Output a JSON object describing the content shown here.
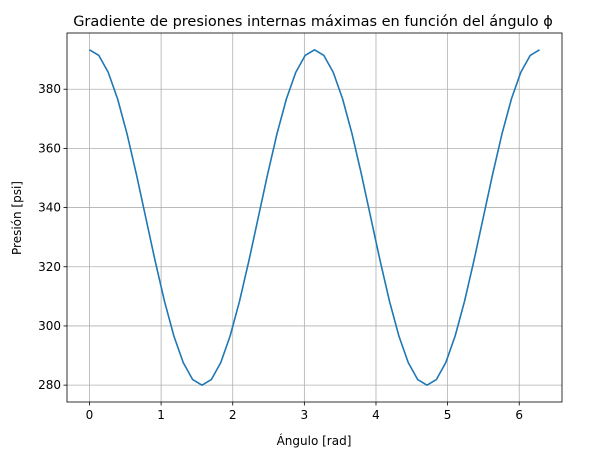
{
  "chart_data": {
    "type": "line",
    "title": "Gradiente de presiones internas máximas en función del ángulo ϕ",
    "xlabel": "Ángulo [rad]",
    "ylabel": "Presión [psi]",
    "xlim": [
      -0.314,
      6.597
    ],
    "ylim": [
      274.3,
      399.0
    ],
    "xticks": [
      0,
      1,
      2,
      3,
      4,
      5,
      6
    ],
    "xtick_labels": [
      "0",
      "1",
      "2",
      "3",
      "4",
      "5",
      "6"
    ],
    "yticks": [
      280,
      300,
      320,
      340,
      360,
      380
    ],
    "ytick_labels": [
      "280",
      "300",
      "320",
      "340",
      "360",
      "380"
    ],
    "grid": true,
    "series": [
      {
        "color": "#1f77b4",
        "x": [
          0,
          0.1309,
          0.2618,
          0.3927,
          0.5236,
          0.6545,
          0.7854,
          0.9163,
          1.0472,
          1.1781,
          1.309,
          1.4399,
          1.5708,
          1.7017,
          1.8326,
          1.9635,
          2.0944,
          2.2253,
          2.3562,
          2.4871,
          2.618,
          2.7489,
          2.8798,
          3.0107,
          3.1416,
          3.2725,
          3.4034,
          3.5343,
          3.6652,
          3.7961,
          3.927,
          4.0579,
          4.1888,
          4.3197,
          4.4506,
          4.5815,
          4.7124,
          4.8433,
          4.9742,
          5.1051,
          5.236,
          5.3669,
          5.4978,
          5.6287,
          5.7596,
          5.8905,
          6.0214,
          6.1523,
          6.2832
        ],
        "y": [
          393.3,
          391.4,
          385.7,
          376.7,
          364.97,
          351.3,
          336.65,
          322.0,
          308.33,
          296.6,
          287.6,
          281.9,
          280.0,
          281.9,
          287.6,
          296.6,
          308.33,
          322.0,
          336.65,
          351.3,
          364.97,
          376.7,
          385.7,
          391.4,
          393.3,
          391.4,
          385.7,
          376.7,
          364.97,
          351.3,
          336.65,
          322.0,
          308.33,
          296.6,
          287.6,
          281.9,
          280.0,
          281.9,
          287.6,
          296.6,
          308.33,
          322.0,
          336.65,
          351.3,
          364.97,
          376.7,
          385.7,
          391.4,
          393.3
        ]
      }
    ]
  }
}
